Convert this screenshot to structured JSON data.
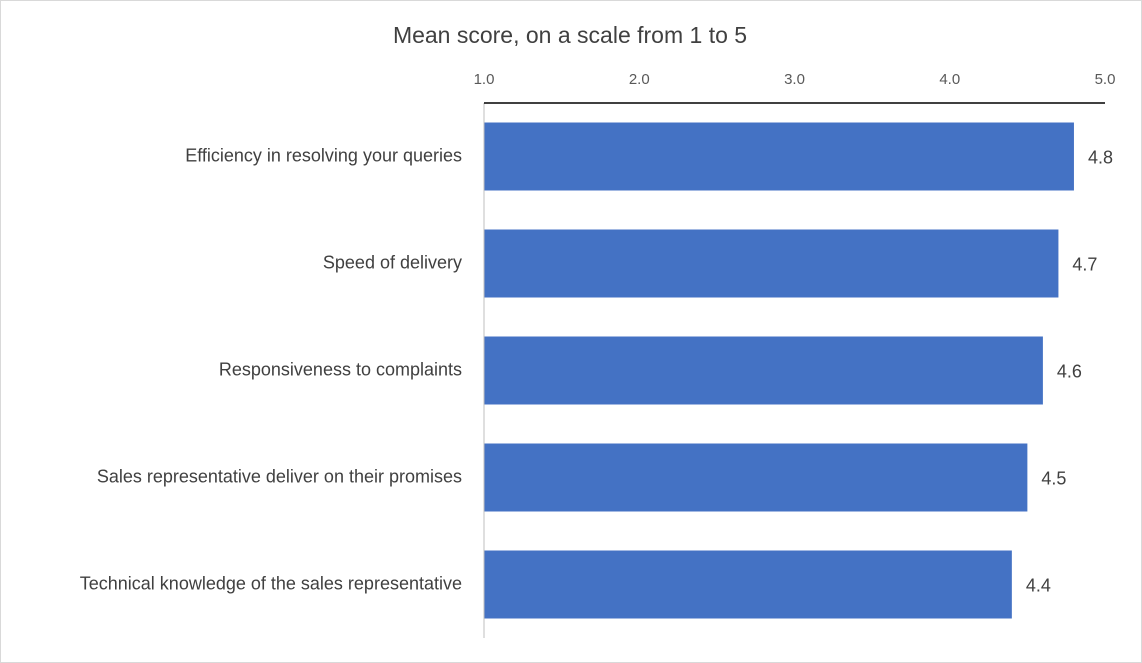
{
  "chart_data": {
    "type": "bar",
    "orientation": "horizontal",
    "title": "Mean score, on a scale from 1 to 5",
    "categories": [
      "Efficiency in resolving your queries",
      "Speed of delivery",
      "Responsiveness to complaints",
      "Sales representative deliver on their promises",
      "Technical knowledge of the sales representative"
    ],
    "values": [
      4.8,
      4.7,
      4.6,
      4.5,
      4.4
    ],
    "color": "#4472c4",
    "xlim": [
      1,
      5
    ],
    "xticks": [
      {
        "value": 1,
        "label": "1.0"
      },
      {
        "value": 2,
        "label": "2.0"
      },
      {
        "value": 3,
        "label": "3.0"
      },
      {
        "value": 4,
        "label": "4.0"
      },
      {
        "value": 5,
        "label": "5.0"
      }
    ],
    "grid": false
  }
}
